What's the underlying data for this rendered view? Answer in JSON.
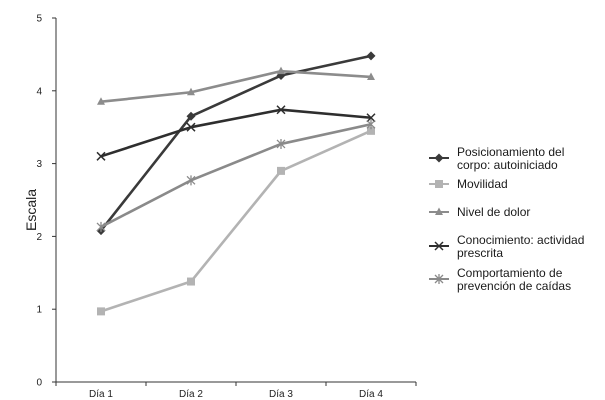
{
  "chart_data": {
    "type": "line",
    "title": "",
    "xlabel": "",
    "ylabel": "Escala",
    "categories": [
      "Día 1",
      "Día 2",
      "Día 3",
      "Día 4"
    ],
    "ylim": [
      0,
      5
    ],
    "yticks": [
      "0",
      "1",
      "2",
      "3",
      "4",
      "5"
    ],
    "grid": false,
    "legend_position": "right",
    "series": [
      {
        "name": "Posicionamiento del corpo: autoiniciado",
        "legend_lines": [
          "Posicionamiento del",
          "corpo: autoiniciado"
        ],
        "values": [
          2.08,
          3.65,
          4.21,
          4.48
        ],
        "color": "#3a3a3a",
        "marker": "diamond"
      },
      {
        "name": "Movilidad",
        "legend_lines": [
          "Movilidad"
        ],
        "values": [
          0.97,
          1.38,
          2.9,
          3.45
        ],
        "color": "#b3b3b3",
        "marker": "square"
      },
      {
        "name": "Nivel de dolor",
        "legend_lines": [
          "Nivel de dolor"
        ],
        "values": [
          3.85,
          3.98,
          4.27,
          4.19
        ],
        "color": "#8c8c8c",
        "marker": "triangle"
      },
      {
        "name": "Conocimiento: actividad prescrita",
        "legend_lines": [
          "Conocimiento: actividad",
          "prescrita"
        ],
        "values": [
          3.1,
          3.5,
          3.74,
          3.63
        ],
        "color": "#2e2e2e",
        "marker": "x"
      },
      {
        "name": "Comportamiento de prevención de caídas",
        "legend_lines": [
          "Comportamiento de",
          "prevención de caídas"
        ],
        "values": [
          2.13,
          2.77,
          3.27,
          3.54
        ],
        "color": "#8a8a8a",
        "marker": "star"
      }
    ]
  }
}
